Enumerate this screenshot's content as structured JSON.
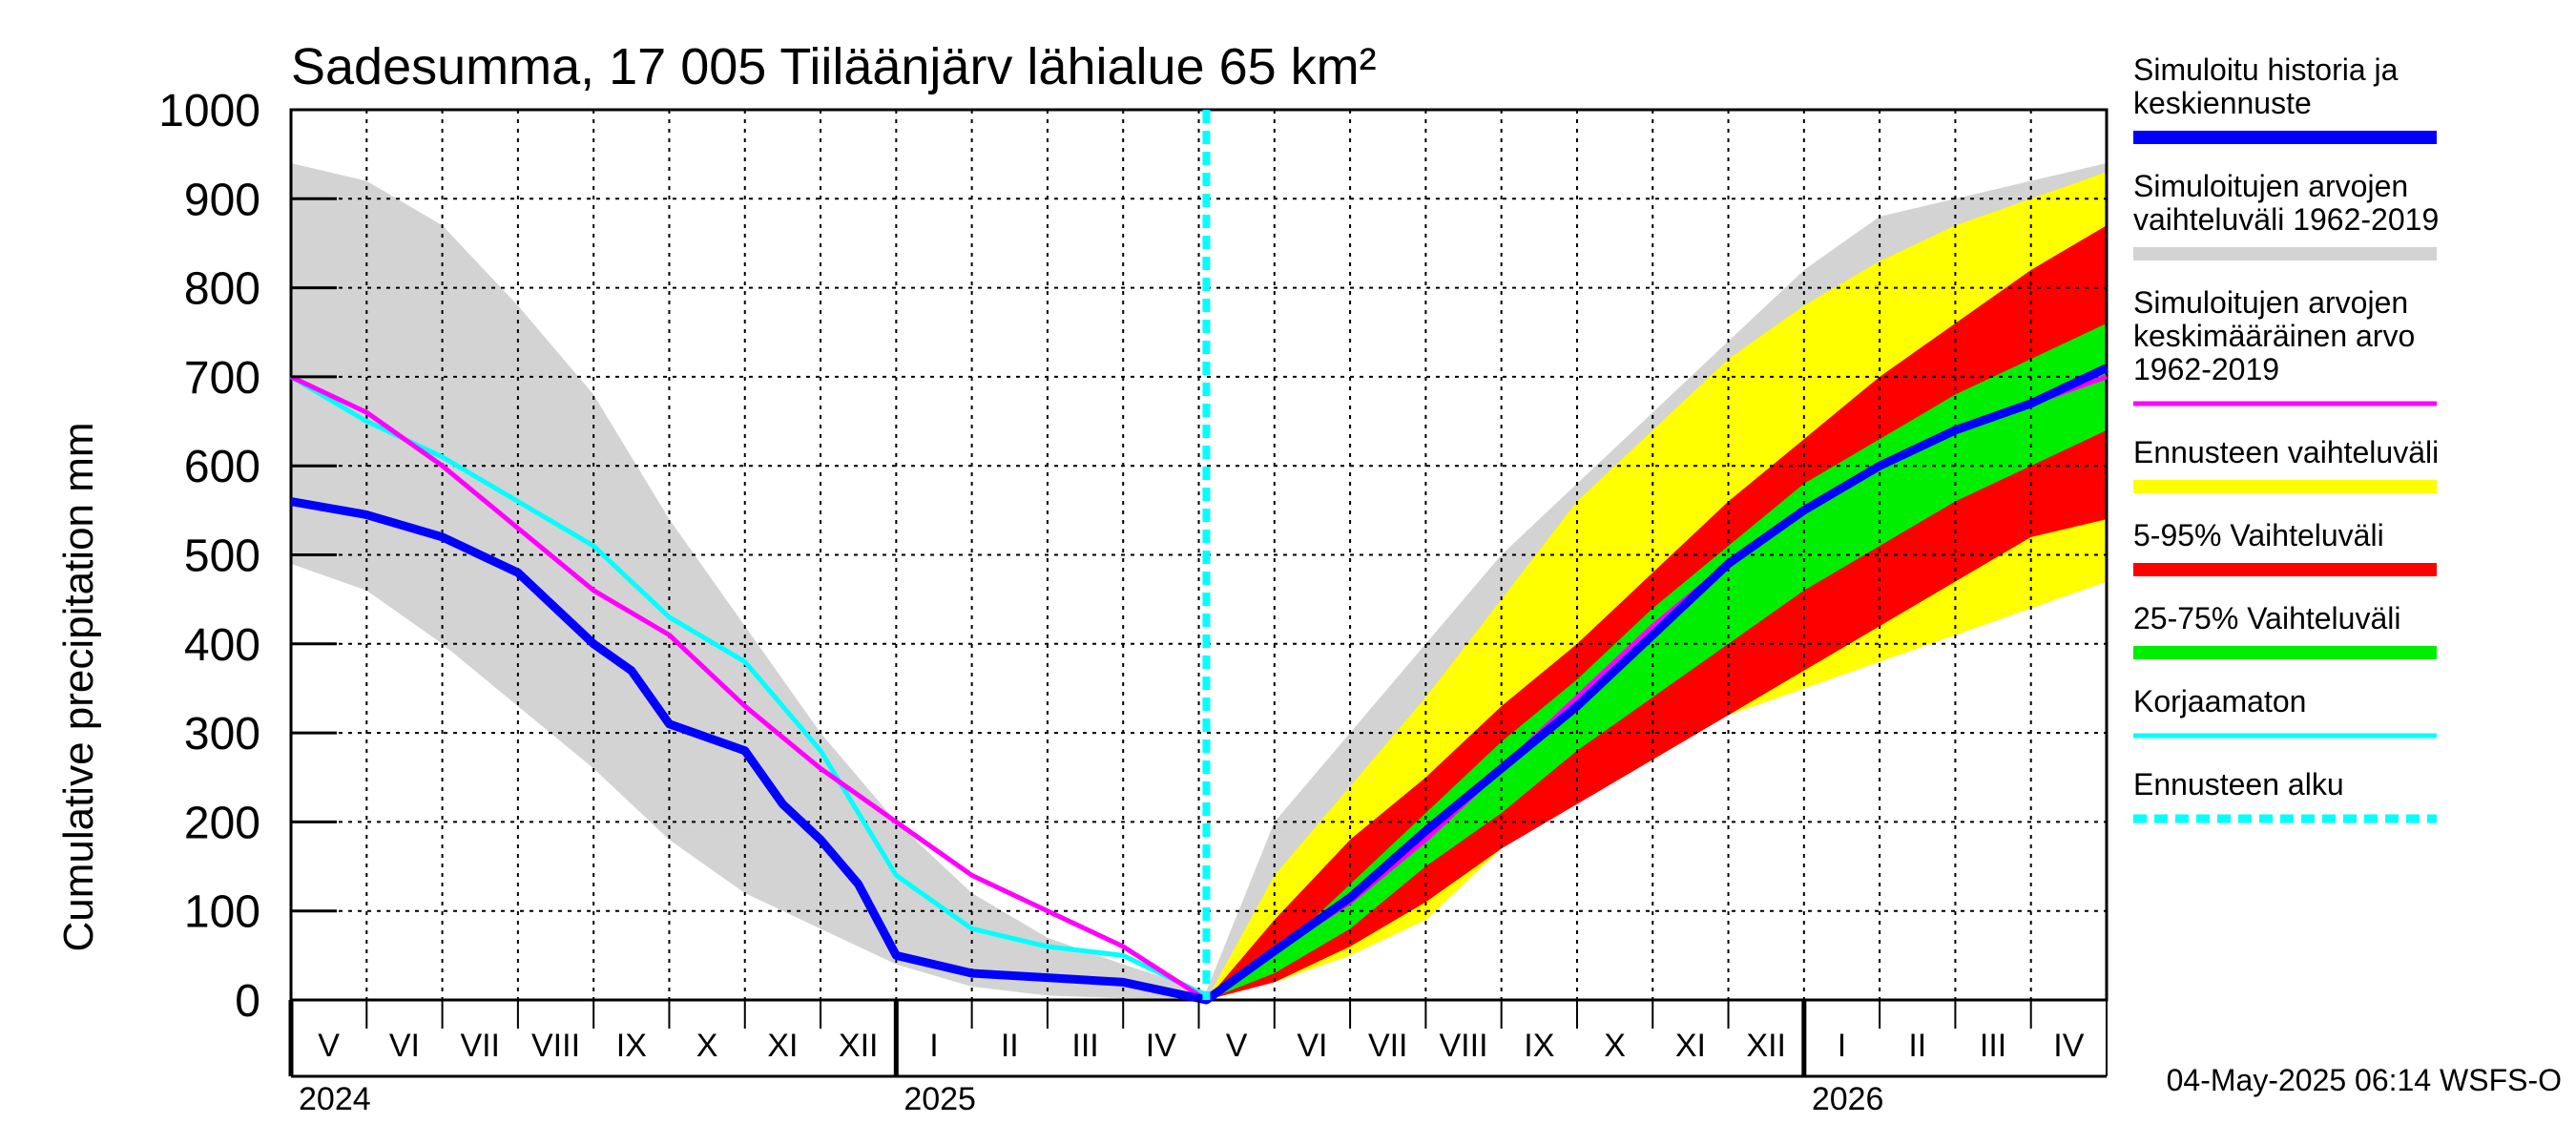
{
  "chart_data": {
    "type": "area",
    "title": "Sadesumma, 17 005 Tiiläänjärv lähialue 65 km²",
    "ylabel": "Cumulative precipitation   mm",
    "ylim": [
      0,
      1000
    ],
    "yticks": [
      0,
      100,
      200,
      300,
      400,
      500,
      600,
      700,
      800,
      900,
      1000
    ],
    "x_unit": "months since 1 May 2024",
    "xlim": [
      0,
      24
    ],
    "forecast_start": 12.1,
    "months": [
      "V",
      "VI",
      "VII",
      "VIII",
      "IX",
      "X",
      "XI",
      "XII",
      "I",
      "II",
      "III",
      "IV",
      "V",
      "VI",
      "VII",
      "VIII",
      "IX",
      "X",
      "XI",
      "XII",
      "I",
      "II",
      "III",
      "IV"
    ],
    "years": [
      {
        "label": "2024",
        "at": 0
      },
      {
        "label": "2025",
        "at": 8
      },
      {
        "label": "2026",
        "at": 20
      }
    ],
    "footer": "04-May-2025 06:14 WSFS-O",
    "series": [
      {
        "name": "hist_range",
        "legend": "Simuloitujen arvojen vaihteluväli 1962-2019",
        "color": "#d3d3d3",
        "x": [
          0,
          1,
          2,
          3,
          4,
          5,
          6,
          7,
          8,
          9,
          10,
          11,
          12.1,
          13,
          14,
          15,
          16,
          17,
          18,
          19,
          20,
          21,
          22,
          23,
          24
        ],
        "upper": [
          940,
          920,
          870,
          780,
          680,
          540,
          420,
          300,
          200,
          120,
          70,
          40,
          10,
          200,
          300,
          400,
          500,
          580,
          660,
          740,
          820,
          880,
          900,
          920,
          940
        ],
        "lower": [
          490,
          460,
          400,
          330,
          260,
          180,
          120,
          80,
          40,
          15,
          5,
          2,
          0,
          30,
          70,
          120,
          180,
          230,
          290,
          320,
          360,
          390,
          420,
          450,
          480
        ]
      },
      {
        "name": "forecast_range",
        "legend": "Ennusteen vaihteluväli",
        "color": "#ffff00",
        "x": [
          12.1,
          13,
          14,
          15,
          16,
          17,
          18,
          19,
          20,
          21,
          22,
          23,
          24
        ],
        "upper": [
          0,
          140,
          240,
          340,
          450,
          560,
          640,
          720,
          780,
          830,
          870,
          900,
          930
        ],
        "lower": [
          0,
          20,
          50,
          90,
          170,
          230,
          280,
          320,
          350,
          380,
          410,
          440,
          470
        ]
      },
      {
        "name": "p5_95",
        "legend": "5-95% Vaihteluväli",
        "color": "#ff0000",
        "x": [
          12.1,
          13,
          14,
          15,
          16,
          17,
          18,
          19,
          20,
          21,
          22,
          23,
          24
        ],
        "upper": [
          0,
          90,
          180,
          250,
          330,
          400,
          480,
          560,
          630,
          700,
          760,
          820,
          870
        ],
        "lower": [
          0,
          20,
          60,
          110,
          170,
          220,
          270,
          320,
          370,
          420,
          470,
          520,
          540
        ]
      },
      {
        "name": "p25_75",
        "legend": "25-75% Vaihteluväli",
        "color": "#00ee00",
        "x": [
          12.1,
          13,
          14,
          15,
          16,
          17,
          18,
          19,
          20,
          21,
          22,
          23,
          24
        ],
        "upper": [
          0,
          50,
          130,
          210,
          290,
          360,
          440,
          510,
          580,
          630,
          680,
          720,
          760
        ],
        "lower": [
          0,
          30,
          80,
          150,
          210,
          280,
          340,
          400,
          460,
          510,
          560,
          600,
          640
        ]
      },
      {
        "name": "korjaamaton",
        "legend": "Korjaamaton",
        "color": "#00ffff",
        "x": [
          0,
          1,
          2,
          3,
          4,
          4.5,
          5,
          6,
          7,
          8,
          9,
          10,
          11,
          12.1
        ],
        "y": [
          700,
          650,
          610,
          560,
          510,
          470,
          430,
          380,
          280,
          140,
          80,
          60,
          50,
          5
        ]
      },
      {
        "name": "mean",
        "legend": "Simuloitujen arvojen keskimääräinen arvo 1962-2019",
        "color": "#ff00ff",
        "x": [
          0,
          1,
          2,
          3,
          4,
          5,
          6,
          7,
          8,
          9,
          10,
          11,
          12.1,
          13,
          14,
          15,
          16,
          17,
          18,
          19,
          20,
          21,
          22,
          23,
          24
        ],
        "y": [
          700,
          660,
          600,
          530,
          460,
          410,
          330,
          260,
          200,
          140,
          100,
          60,
          0,
          55,
          110,
          180,
          260,
          340,
          420,
          490,
          550,
          600,
          640,
          670,
          700
        ]
      },
      {
        "name": "history",
        "legend": "Simuloitu historia ja keskiennuste",
        "color": "#0000ff",
        "x": [
          0,
          1,
          2,
          3,
          3.5,
          4,
          4.5,
          5,
          6,
          6.5,
          7,
          7.5,
          8,
          9,
          10,
          11,
          12.1,
          13,
          14,
          15,
          16,
          17,
          18,
          19,
          20,
          21,
          22,
          23,
          24
        ],
        "y": [
          560,
          545,
          520,
          480,
          440,
          400,
          370,
          310,
          280,
          220,
          180,
          130,
          50,
          30,
          25,
          20,
          0,
          55,
          115,
          190,
          260,
          330,
          410,
          490,
          550,
          600,
          640,
          670,
          710
        ]
      }
    ],
    "legend": [
      {
        "key": "history",
        "label": "Simuloitu historia ja keskiennuste",
        "color": "#0000ff",
        "style": "solid"
      },
      {
        "key": "hist_range",
        "label": "Simuloitujen arvojen vaihteluväli 1962-2019",
        "color": "#d3d3d3",
        "style": "solid"
      },
      {
        "key": "mean",
        "label": "Simuloitujen arvojen keskimääräinen arvo    1962-2019",
        "color": "#ff00ff",
        "style": "solid"
      },
      {
        "key": "forecast_range",
        "label": "Ennusteen vaihteluväli",
        "color": "#ffff00",
        "style": "solid"
      },
      {
        "key": "p5_95",
        "label": "5-95% Vaihteluväli",
        "color": "#ff0000",
        "style": "solid"
      },
      {
        "key": "p25_75",
        "label": "25-75% Vaihteluväli",
        "color": "#00ee00",
        "style": "solid"
      },
      {
        "key": "korjaamaton",
        "label": "Korjaamaton",
        "color": "#00ffff",
        "style": "solid"
      },
      {
        "key": "start",
        "label": "Ennusteen alku",
        "color": "#00ffff",
        "style": "dashed"
      }
    ]
  }
}
